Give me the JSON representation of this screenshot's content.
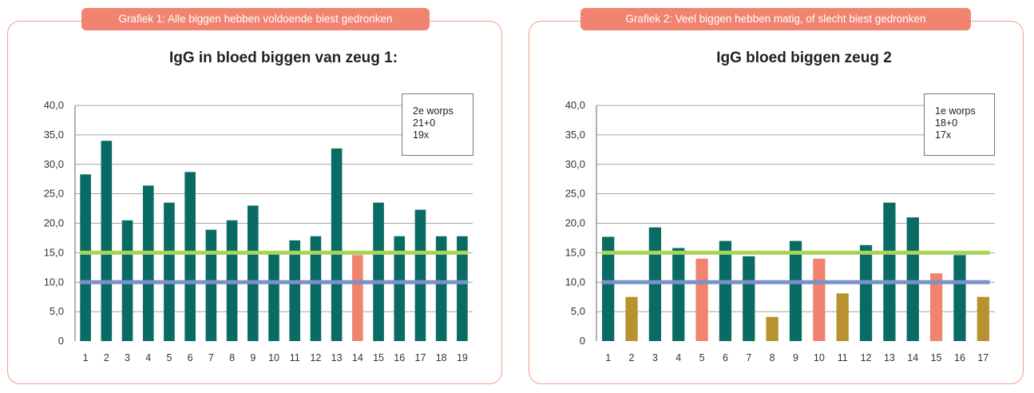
{
  "colors": {
    "bar_normal": "#0a6b65",
    "bar_low": "#b8922e",
    "bar_salmon": "#f08470",
    "line_green": "#a8d45a",
    "line_blue": "#7b91c9",
    "badge": "#f08470",
    "panel_border": "#f0a08c",
    "grid": "#888888"
  },
  "chart_data": [
    {
      "type": "bar",
      "badge": "Grafiek 1: Alle biggen hebben voldoende biest gedronken",
      "title": "IgG in bloed biggen van zeug 1:",
      "legend_lines": [
        "2e worps",
        "21+0",
        "19x"
      ],
      "categories": [
        "1",
        "2",
        "3",
        "4",
        "5",
        "6",
        "7",
        "8",
        "9",
        "10",
        "11",
        "12",
        "13",
        "14",
        "15",
        "16",
        "17",
        "18",
        "19"
      ],
      "values": [
        28.3,
        34.0,
        20.5,
        26.4,
        23.5,
        28.7,
        18.9,
        20.5,
        23.0,
        15.1,
        17.1,
        17.8,
        32.7,
        14.6,
        23.5,
        17.8,
        22.3,
        17.8,
        17.8
      ],
      "bar_colors": [
        "normal",
        "normal",
        "normal",
        "normal",
        "normal",
        "normal",
        "normal",
        "normal",
        "normal",
        "normal",
        "normal",
        "normal",
        "normal",
        "salmon",
        "normal",
        "normal",
        "normal",
        "normal",
        "normal"
      ],
      "reference_lines": [
        15,
        10
      ],
      "ylim": [
        0,
        40
      ],
      "yticks": [
        "0",
        "5,0",
        "10,0",
        "15,0",
        "20,0",
        "25,0",
        "30,0",
        "35,0",
        "40,0"
      ],
      "grid": true
    },
    {
      "type": "bar",
      "badge": "Grafiek 2: Veel biggen hebben matig, of slecht biest gedronken",
      "title": "IgG bloed biggen zeug 2",
      "legend_lines": [
        "1e worps",
        "18+0",
        "17x"
      ],
      "categories": [
        "1",
        "2",
        "3",
        "4",
        "5",
        "6",
        "7",
        "8",
        "9",
        "10",
        "11",
        "12",
        "13",
        "14",
        "15",
        "16",
        "17"
      ],
      "values": [
        17.7,
        7.5,
        19.3,
        15.8,
        14.0,
        17.0,
        14.4,
        4.1,
        17.0,
        14.0,
        8.1,
        16.3,
        23.5,
        21.0,
        11.5,
        14.6,
        7.5
      ],
      "bar_colors": [
        "normal",
        "low",
        "normal",
        "normal",
        "salmon",
        "normal",
        "normal",
        "low",
        "normal",
        "salmon",
        "low",
        "normal",
        "normal",
        "normal",
        "salmon",
        "normal",
        "low"
      ],
      "reference_lines": [
        15,
        10
      ],
      "ylim": [
        0,
        40
      ],
      "yticks": [
        "0",
        "5,0",
        "10,0",
        "15,0",
        "20,0",
        "25,0",
        "30,0",
        "35,0",
        "40,0"
      ],
      "grid": true
    }
  ]
}
